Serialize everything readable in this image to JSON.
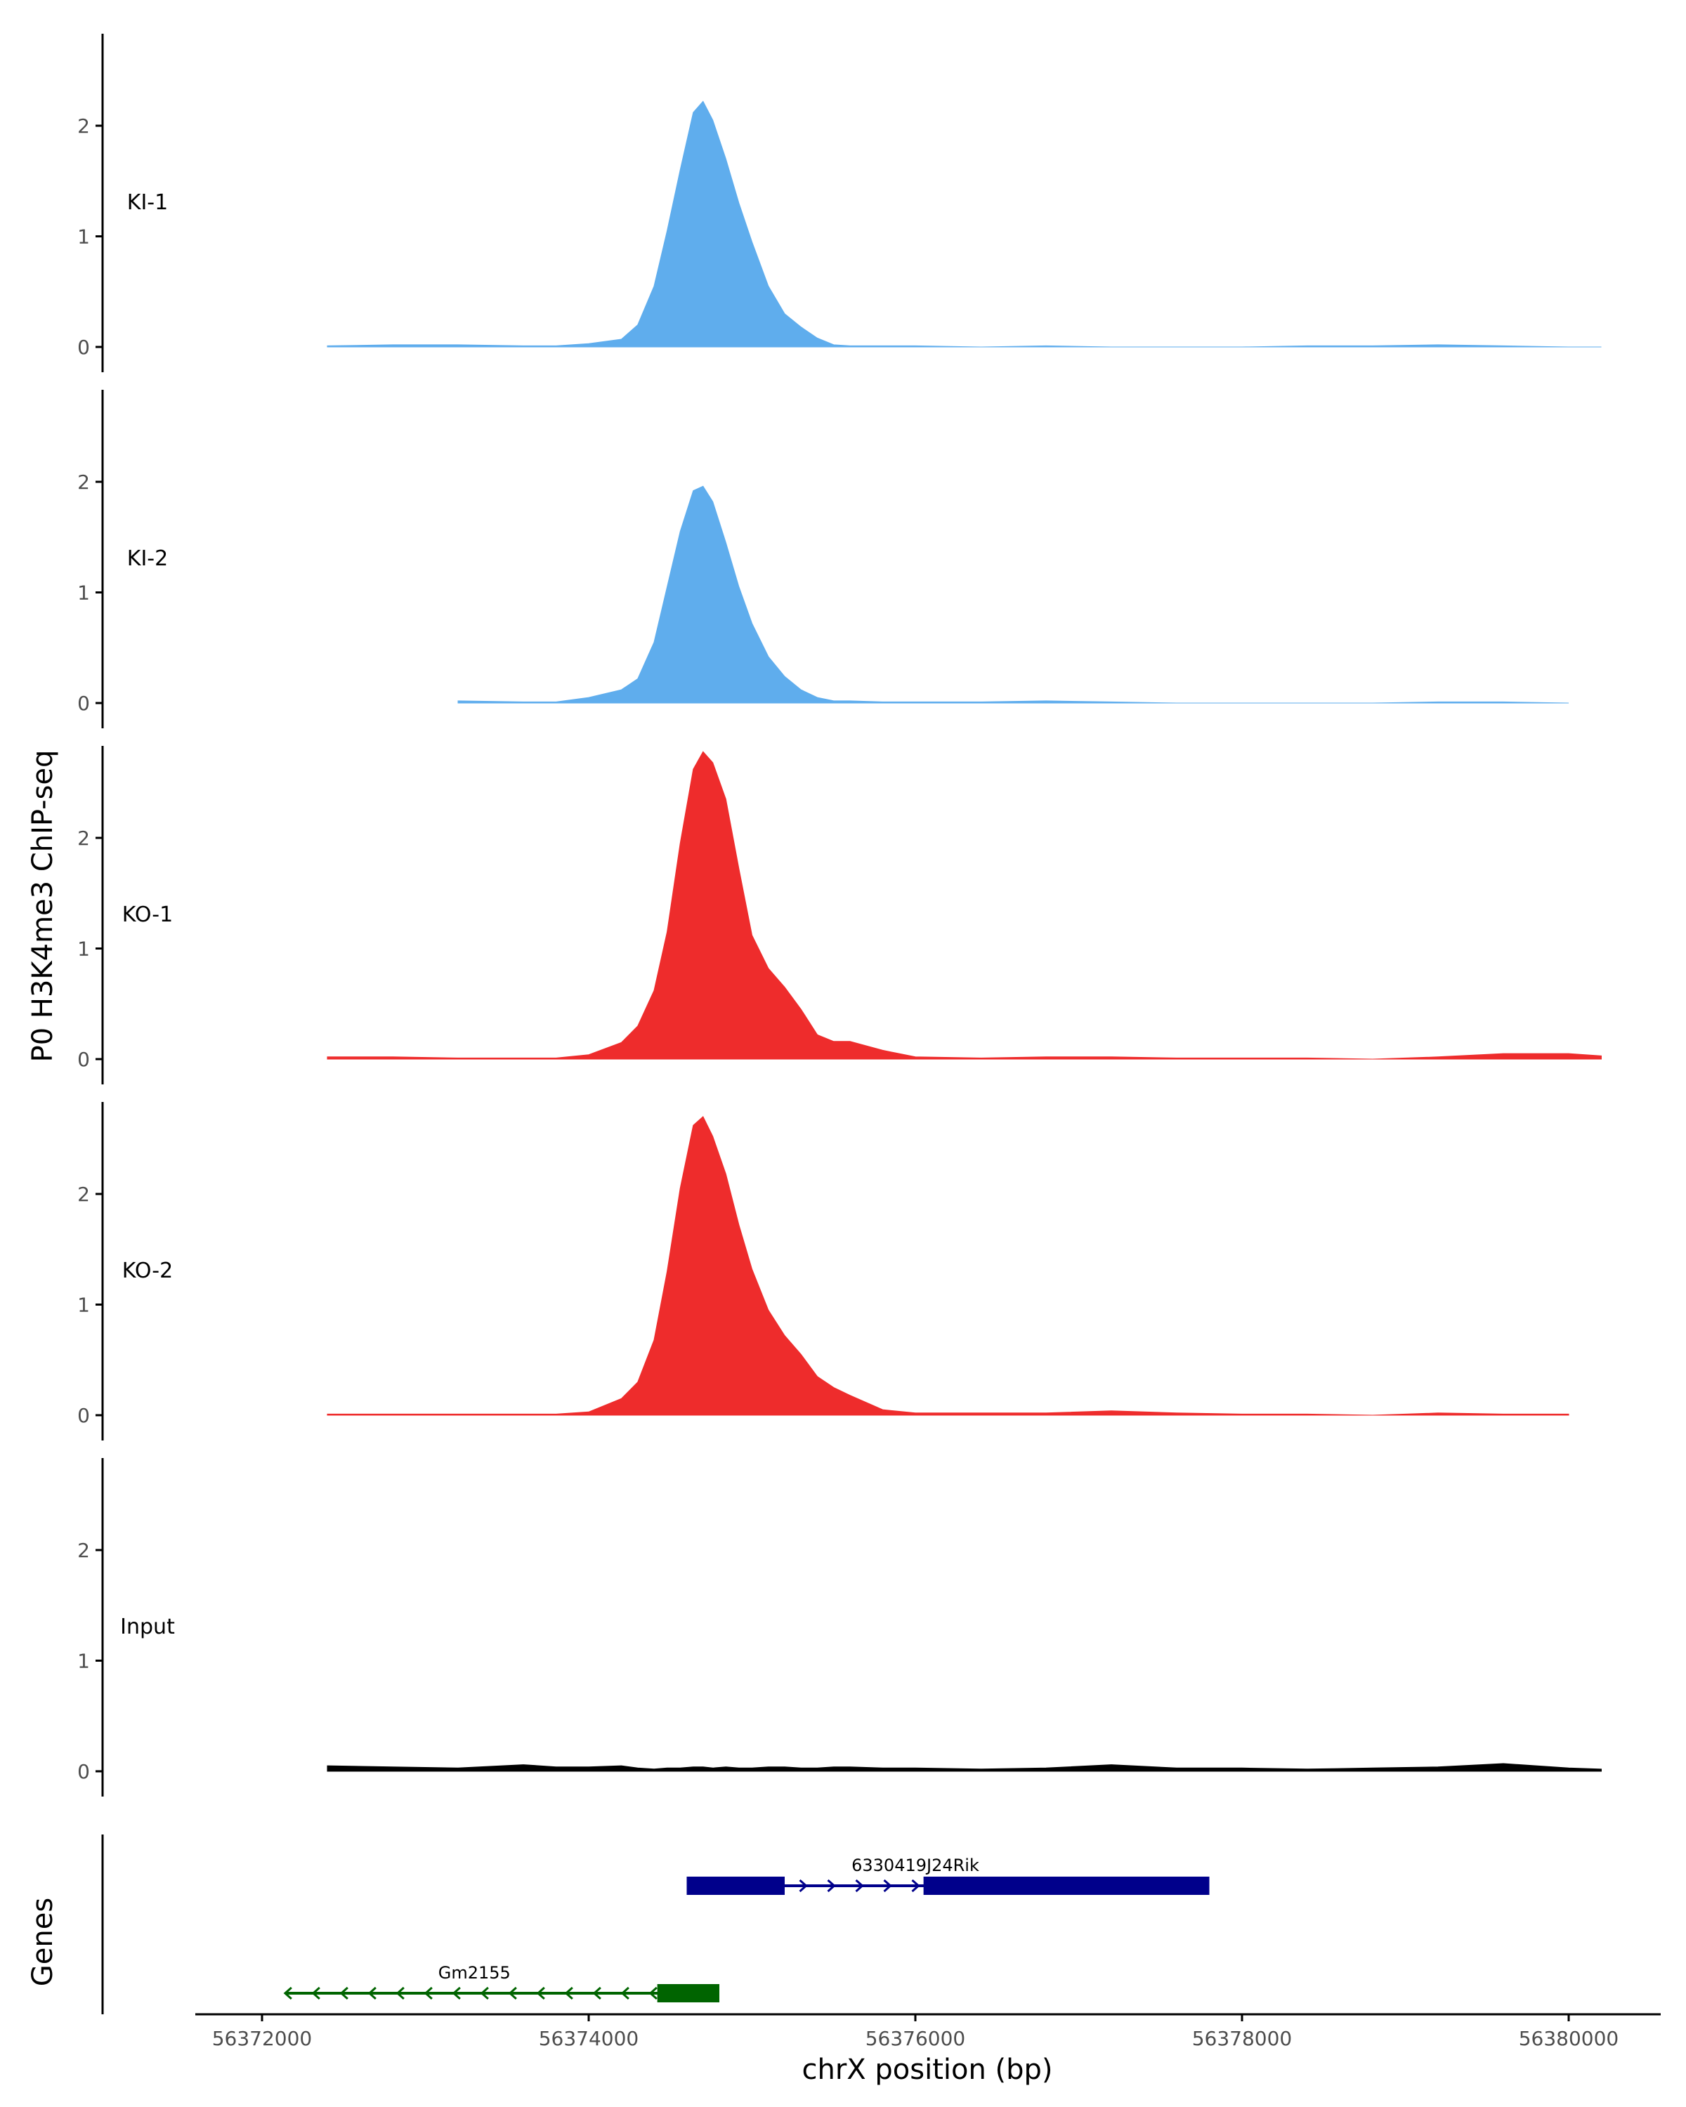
{
  "chart_data": {
    "type": "area",
    "title": "",
    "xlabel": "chrX position (bp)",
    "ylabel": "P0 H3K4me3 ChIP-seq",
    "genes_label": "Genes",
    "xlim": [
      56371600,
      56380500
    ],
    "xticks": [
      56372000,
      56374000,
      56376000,
      56378000,
      56380000
    ],
    "xtick_labels": [
      "56372000",
      "56374000",
      "56376000",
      "56378000",
      "56380000"
    ],
    "ylim": [
      0,
      2.8
    ],
    "yticks": [
      0,
      1,
      2
    ],
    "ytick_labels": [
      "0",
      "1",
      "2"
    ],
    "x": [
      56372000,
      56372400,
      56372800,
      56373200,
      56373600,
      56373800,
      56374000,
      56374200,
      56374300,
      56374400,
      56374480,
      56374560,
      56374640,
      56374700,
      56374760,
      56374840,
      56374920,
      56375000,
      56375100,
      56375200,
      56375300,
      56375400,
      56375500,
      56375600,
      56375800,
      56376000,
      56376400,
      56376800,
      56377200,
      56377600,
      56378000,
      56378400,
      56378800,
      56379200,
      56379600,
      56380000,
      56380200
    ],
    "colors": {
      "KI": "#5faded",
      "KO": "#ee2c2c",
      "Input": "#000000",
      "gene_plus": "#00008b",
      "gene_minus": "#006400",
      "axis": "#000000"
    },
    "series": [
      {
        "name": "KI-1",
        "color": "#5faded",
        "x_start": 56372400,
        "x_end": 56380200,
        "values": [
          0,
          0.01,
          0.02,
          0.02,
          0.01,
          0.01,
          0.03,
          0.07,
          0.2,
          0.55,
          1.05,
          1.6,
          2.12,
          2.22,
          2.05,
          1.7,
          1.3,
          0.95,
          0.55,
          0.3,
          0.18,
          0.08,
          0.02,
          0.01,
          0.01,
          0.01,
          0.0,
          0.01,
          0.0,
          0.0,
          0.0,
          0.01,
          0.01,
          0.02,
          0.01,
          0.0,
          0.0
        ]
      },
      {
        "name": "KI-2",
        "color": "#5faded",
        "x_start": 56372900,
        "x_end": 56380000,
        "values": [
          0,
          0,
          0,
          0.02,
          0.01,
          0.01,
          0.05,
          0.12,
          0.22,
          0.55,
          1.05,
          1.55,
          1.92,
          1.96,
          1.82,
          1.45,
          1.05,
          0.72,
          0.42,
          0.24,
          0.12,
          0.05,
          0.02,
          0.02,
          0.01,
          0.01,
          0.01,
          0.02,
          0.01,
          0.0,
          0.0,
          0.0,
          0.0,
          0.01,
          0.01,
          0.0,
          0.0
        ]
      },
      {
        "name": "KO-1",
        "color": "#ee2c2c",
        "x_start": 56372400,
        "x_end": 56380500,
        "values": [
          0,
          0.02,
          0.02,
          0.01,
          0.01,
          0.01,
          0.04,
          0.15,
          0.3,
          0.62,
          1.15,
          1.95,
          2.62,
          2.78,
          2.68,
          2.35,
          1.72,
          1.12,
          0.82,
          0.65,
          0.45,
          0.22,
          0.16,
          0.16,
          0.08,
          0.02,
          0.01,
          0.02,
          0.02,
          0.01,
          0.01,
          0.01,
          0.0,
          0.02,
          0.05,
          0.05,
          0.03
        ]
      },
      {
        "name": "KO-2",
        "color": "#ee2c2c",
        "x_start": 56372100,
        "x_end": 56380000,
        "values": [
          0.02,
          0.01,
          0.01,
          0.01,
          0.01,
          0.01,
          0.03,
          0.15,
          0.3,
          0.68,
          1.3,
          2.05,
          2.62,
          2.7,
          2.52,
          2.18,
          1.72,
          1.32,
          0.95,
          0.72,
          0.55,
          0.35,
          0.25,
          0.18,
          0.05,
          0.02,
          0.02,
          0.02,
          0.04,
          0.02,
          0.01,
          0.01,
          0.0,
          0.02,
          0.01,
          0.01,
          0.0
        ]
      },
      {
        "name": "Input",
        "color": "#000000",
        "x_start": 56372100,
        "x_end": 56380500,
        "values": [
          0.02,
          0.05,
          0.04,
          0.03,
          0.06,
          0.04,
          0.04,
          0.05,
          0.03,
          0.02,
          0.03,
          0.03,
          0.04,
          0.04,
          0.03,
          0.04,
          0.03,
          0.03,
          0.04,
          0.04,
          0.03,
          0.03,
          0.04,
          0.04,
          0.03,
          0.03,
          0.02,
          0.03,
          0.06,
          0.03,
          0.03,
          0.02,
          0.03,
          0.04,
          0.07,
          0.03,
          0.02
        ]
      }
    ],
    "genes": [
      {
        "name": "6330419J24Rik",
        "strand": "+",
        "color": "#00008b",
        "start": 56374600,
        "end": 56377800,
        "exons": [
          [
            56374600,
            56375200
          ],
          [
            56376050,
            56377800
          ]
        ]
      },
      {
        "name": "Gm2155",
        "strand": "-",
        "color": "#006400",
        "start": 56372150,
        "end": 56374800,
        "exons": [
          [
            56374420,
            56374800
          ]
        ]
      }
    ]
  }
}
